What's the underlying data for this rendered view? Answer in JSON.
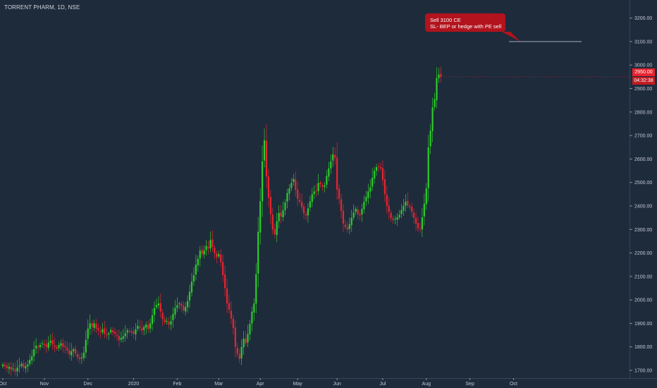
{
  "header": {
    "title": "TORRENT PHARM, 1D, NSE"
  },
  "annotation": {
    "line1": "Sell 3100 CE",
    "line2": "SL- BEP or hedge with PE sell",
    "level": 3100
  },
  "price_marker": {
    "last_price": "2950.00",
    "countdown": "04:32:38"
  },
  "colors": {
    "background": "#1e2b3b",
    "up": "#2dcc2b",
    "down": "#e8242f",
    "annotation": "#b2131d",
    "axis_text": "#c5c9d3"
  },
  "chart_data": {
    "type": "candlestick",
    "title": "TORRENT PHARM, 1D, NSE",
    "ylim": [
      1680,
      3250
    ],
    "y_ticks": [
      1700,
      1800,
      1900,
      2000,
      2100,
      2200,
      2300,
      2400,
      2500,
      2600,
      2700,
      2800,
      2900,
      3000,
      3100,
      3200
    ],
    "y_tick_labels": [
      "1700.00",
      "1800.00",
      "1900.00",
      "2000.00",
      "2100.00",
      "2200.00",
      "2300.00",
      "2400.00",
      "2500.00",
      "2600.00",
      "2700.00",
      "2800.00",
      "2900.00",
      "3000.00",
      "3100.00",
      "3200.00"
    ],
    "x_labels": [
      {
        "label": "Oct",
        "bar": 0
      },
      {
        "label": "Nov",
        "bar": 20
      },
      {
        "label": "Dec",
        "bar": 41
      },
      {
        "label": "2020",
        "bar": 63
      },
      {
        "label": "Feb",
        "bar": 84
      },
      {
        "label": "Mar",
        "bar": 104
      },
      {
        "label": "Apr",
        "bar": 124
      },
      {
        "label": "May",
        "bar": 142
      },
      {
        "label": "Jun",
        "bar": 161
      },
      {
        "label": "Jul",
        "bar": 183
      },
      {
        "label": "Aug",
        "bar": 204
      },
      {
        "label": "Sep",
        "bar": 225
      },
      {
        "label": "Oct",
        "bar": 246
      }
    ],
    "closes": [
      1725,
      1718,
      1710,
      1715,
      1702,
      1708,
      1695,
      1712,
      1720,
      1728,
      1712,
      1718,
      1725,
      1745,
      1760,
      1790,
      1805,
      1798,
      1808,
      1815,
      1808,
      1800,
      1818,
      1826,
      1810,
      1800,
      1792,
      1808,
      1815,
      1800,
      1798,
      1785,
      1768,
      1782,
      1790,
      1772,
      1755,
      1748,
      1755,
      1775,
      1830,
      1878,
      1900,
      1885,
      1900,
      1878,
      1870,
      1862,
      1875,
      1855,
      1852,
      1858,
      1872,
      1862,
      1856,
      1848,
      1828,
      1838,
      1845,
      1858,
      1870,
      1866,
      1862,
      1855,
      1875,
      1890,
      1880,
      1870,
      1885,
      1895,
      1875,
      1900,
      1935,
      1965,
      1978,
      1985,
      1950,
      1918,
      1905,
      1910,
      1895,
      1910,
      1940,
      1965,
      1978,
      1985,
      1975,
      1955,
      1970,
      1995,
      2035,
      2078,
      2105,
      2150,
      2175,
      2210,
      2195,
      2210,
      2230,
      2220,
      2255,
      2225,
      2198,
      2182,
      2195,
      2160,
      2105,
      2050,
      1985,
      1958,
      1920,
      1880,
      1800,
      1770,
      1748,
      1800,
      1835,
      1815,
      1855,
      1898,
      1950,
      1985,
      2110,
      2290,
      2420,
      2590,
      2680,
      2525,
      2435,
      2365,
      2300,
      2280,
      2335,
      2370,
      2355,
      2382,
      2415,
      2455,
      2475,
      2498,
      2515,
      2468,
      2430,
      2418,
      2395,
      2368,
      2360,
      2390,
      2420,
      2450,
      2462,
      2465,
      2498,
      2492,
      2482,
      2488,
      2528,
      2560,
      2590,
      2620,
      2605,
      2470,
      2430,
      2378,
      2325,
      2310,
      2300,
      2322,
      2350,
      2372,
      2388,
      2365,
      2360,
      2388,
      2418,
      2438,
      2462,
      2480,
      2520,
      2550,
      2565,
      2568,
      2560,
      2510,
      2450,
      2400,
      2375,
      2348,
      2340,
      2345,
      2352,
      2362,
      2382,
      2400,
      2418,
      2402,
      2395,
      2375,
      2350,
      2325,
      2305,
      2300,
      2352,
      2410,
      2475,
      2650,
      2720,
      2820,
      2855,
      2945,
      2960,
      2950
    ]
  }
}
